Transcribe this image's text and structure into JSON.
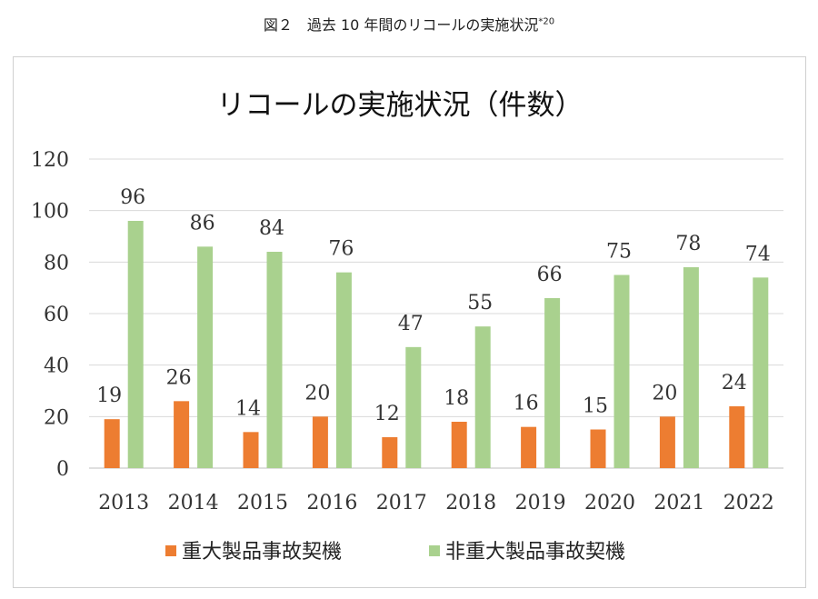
{
  "caption": {
    "main": "図２　過去 10 年間のリコールの実施状況",
    "note": "*20"
  },
  "chart_data": {
    "type": "bar",
    "title": "リコールの実施状況（件数）",
    "categories": [
      "2013",
      "2014",
      "2015",
      "2016",
      "2017",
      "2018",
      "2019",
      "2020",
      "2021",
      "2022"
    ],
    "series": [
      {
        "name": "重大製品事故契機",
        "color": "#ed7d31",
        "values": [
          19,
          26,
          14,
          20,
          12,
          18,
          16,
          15,
          20,
          24
        ]
      },
      {
        "name": "非重大製品事故契機",
        "color": "#a9d18e",
        "values": [
          96,
          86,
          84,
          76,
          47,
          55,
          66,
          75,
          78,
          74
        ]
      }
    ],
    "ylim": [
      0,
      120
    ],
    "yticks": [
      0,
      20,
      40,
      60,
      80,
      100,
      120
    ],
    "grid": true,
    "legend": "bottom"
  }
}
